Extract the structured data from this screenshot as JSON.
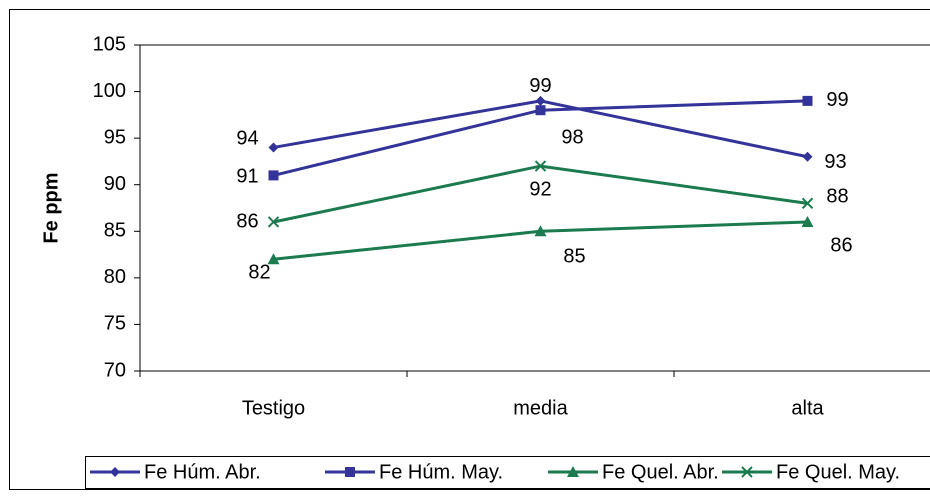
{
  "chart_data": {
    "type": "line",
    "ylabel": "Fe ppm",
    "categories": [
      "Testigo",
      "media",
      "alta"
    ],
    "series": [
      {
        "name": "Fe Húm. Abr.",
        "color": "#333399",
        "marker": "diamond",
        "values": [
          94,
          99,
          93
        ]
      },
      {
        "name": "Fe Húm. May.",
        "color": "#333399",
        "marker": "square",
        "values": [
          91,
          98,
          99
        ]
      },
      {
        "name": "Fe Quel. Abr.",
        "color": "#1b7a4e",
        "marker": "triangle",
        "values": [
          82,
          85,
          86
        ]
      },
      {
        "name": "Fe Quel. May.",
        "color": "#1b7a4e",
        "marker": "x",
        "values": [
          86,
          92,
          88
        ]
      }
    ],
    "ylim": [
      70,
      105
    ],
    "yticks": [
      70,
      75,
      80,
      85,
      90,
      95,
      100,
      105
    ],
    "legend": "bottom"
  }
}
